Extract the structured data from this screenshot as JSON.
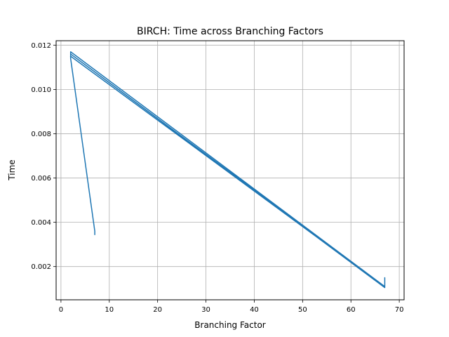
{
  "chart_data": {
    "type": "line",
    "title": "BIRCH: Time across Branching Factors",
    "xlabel": "Branching Factor",
    "ylabel": "Time",
    "xlim": [
      -1.0,
      71.0
    ],
    "ylim": [
      0.0005,
      0.0122
    ],
    "xticks": [
      0,
      10,
      20,
      30,
      40,
      50,
      60,
      70
    ],
    "xtick_labels": [
      "0",
      "10",
      "20",
      "30",
      "40",
      "50",
      "60",
      "70"
    ],
    "yticks": [
      0.002,
      0.004,
      0.006,
      0.008,
      0.01,
      0.012
    ],
    "ytick_labels": [
      "0.002",
      "0.004",
      "0.006",
      "0.008",
      "0.010",
      "0.012"
    ],
    "grid": true,
    "series": [
      {
        "color": "#1f77b4",
        "points": [
          [
            7.0,
            0.00345
          ],
          [
            7.0,
            0.0036
          ],
          [
            2.0,
            0.0114
          ],
          [
            2.0,
            0.0117
          ],
          [
            67.0,
            0.0011
          ],
          [
            67.0,
            0.0015
          ],
          [
            67.0,
            0.00105
          ],
          [
            2.0,
            0.0116
          ],
          [
            67.0,
            0.00108
          ],
          [
            2.0,
            0.0115
          ]
        ]
      }
    ]
  }
}
